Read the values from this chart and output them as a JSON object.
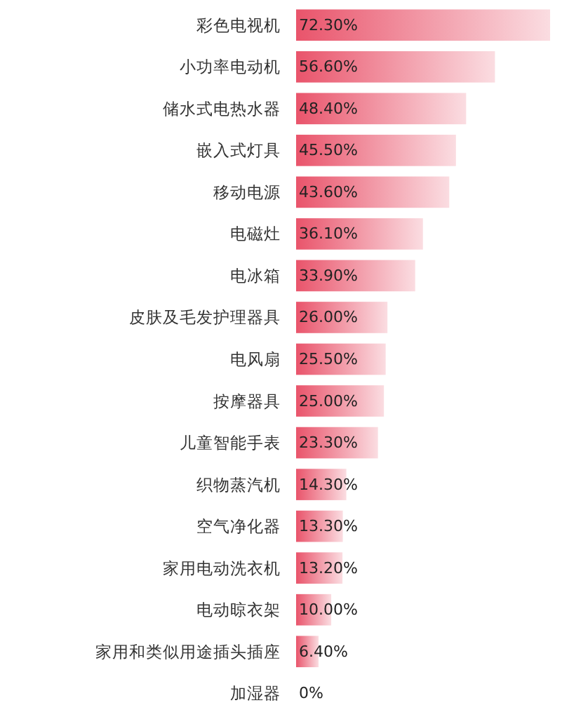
{
  "chart_data": {
    "type": "bar",
    "orientation": "horizontal",
    "categories": [
      "彩色电视机",
      "小功率电动机",
      "储水式电热水器",
      "嵌入式灯具",
      "移动电源",
      "电磁灶",
      "电冰箱",
      "皮肤及毛发护理器具",
      "电风扇",
      "按摩器具",
      "儿童智能手表",
      "织物蒸汽机",
      "空气净化器",
      "家用电动洗衣机",
      "电动晾衣架",
      "家用和类似用途插头插座",
      "加湿器"
    ],
    "series": [
      {
        "color": "#e9546b",
        "values": [
          72.3,
          56.6,
          48.4,
          45.5,
          43.6,
          36.1,
          33.9,
          26.0,
          25.5,
          25.0,
          23.3,
          14.3,
          13.3,
          13.2,
          10.0,
          6.4,
          0
        ],
        "value_labels": [
          "72.30%",
          "56.60%",
          "48.40%",
          "45.50%",
          "43.60%",
          "36.10%",
          "33.90%",
          "26.00%",
          "25.50%",
          "25.00%",
          "23.30%",
          "14.30%",
          "13.30%",
          "13.20%",
          "10.00%",
          "6.40%",
          "0%"
        ]
      }
    ]
  }
}
